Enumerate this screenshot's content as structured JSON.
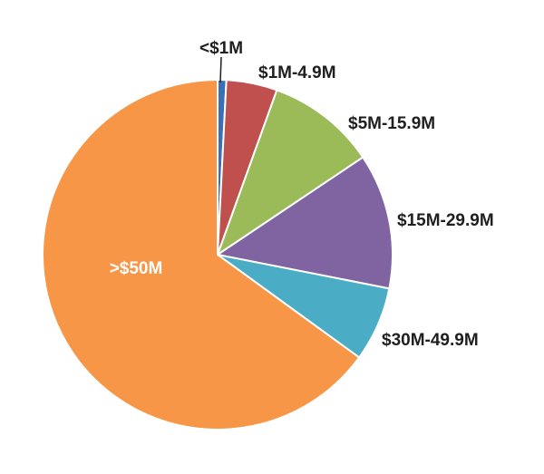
{
  "chart_data": {
    "type": "pie",
    "categories": [
      "<$1M",
      "$1M-4.9M",
      "$5M-15.9M",
      "$15M-29.9M",
      "$30M-49.9M",
      ">$50M"
    ],
    "values": [
      0.8,
      4.7,
      10.1,
      12.5,
      6.9,
      65.0
    ],
    "colors": [
      "#3b6fb6",
      "#c0504d",
      "#9bbb59",
      "#8064a2",
      "#4bacc6",
      "#f79646"
    ],
    "start_angle_deg": 0,
    "direction": "clockwise",
    "label_inside": [
      false,
      false,
      false,
      false,
      false,
      true
    ],
    "title": ""
  }
}
